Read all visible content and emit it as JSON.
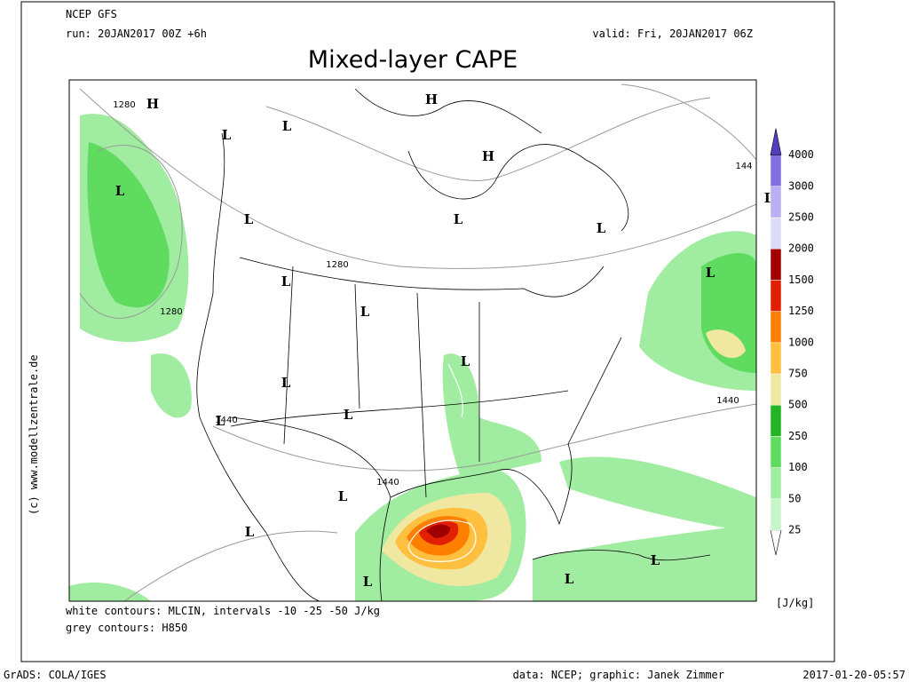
{
  "header": {
    "model": "NCEP GFS",
    "run": "run: 20JAN2017 00Z +6h",
    "valid": "valid: Fri, 20JAN2017 06Z",
    "title": "Mixed-layer CAPE"
  },
  "notes": {
    "white_contours": "white contours: MLCIN, intervals -10 -25 -50 J/kg",
    "grey_contours": "grey contours: H850"
  },
  "footer": {
    "software": "GrADS: COLA/IGES",
    "credit": "data: NCEP; graphic: Janek Zimmer",
    "timestamp": "2017-01-20-05:57",
    "copyright": "(c) www.modellzentrale.de"
  },
  "colorbar": {
    "labels": [
      25,
      50,
      100,
      250,
      500,
      750,
      1000,
      1250,
      1500,
      2000,
      2500,
      3000,
      4000
    ],
    "colors": [
      "#ffffff",
      "#c8f5c8",
      "#a0eca0",
      "#5fdc5f",
      "#22b422",
      "#f0e8a0",
      "#ffc040",
      "#ff8000",
      "#e02000",
      "#a00000",
      "#dcdcf8",
      "#b8b0f0",
      "#8070e0",
      "#5040c0"
    ],
    "unit": "[J/kg]"
  },
  "pressure_labels": [
    "H",
    "L",
    "L",
    "L",
    "L",
    "L",
    "L",
    "L",
    "L",
    "L",
    "L",
    "L",
    "L",
    "L",
    "L",
    "L",
    "L",
    "L",
    "L",
    "L",
    "H",
    "H"
  ],
  "contour_labels": [
    "1280",
    "1280",
    "1280",
    "1440",
    "1440",
    "1440",
    "144"
  ]
}
